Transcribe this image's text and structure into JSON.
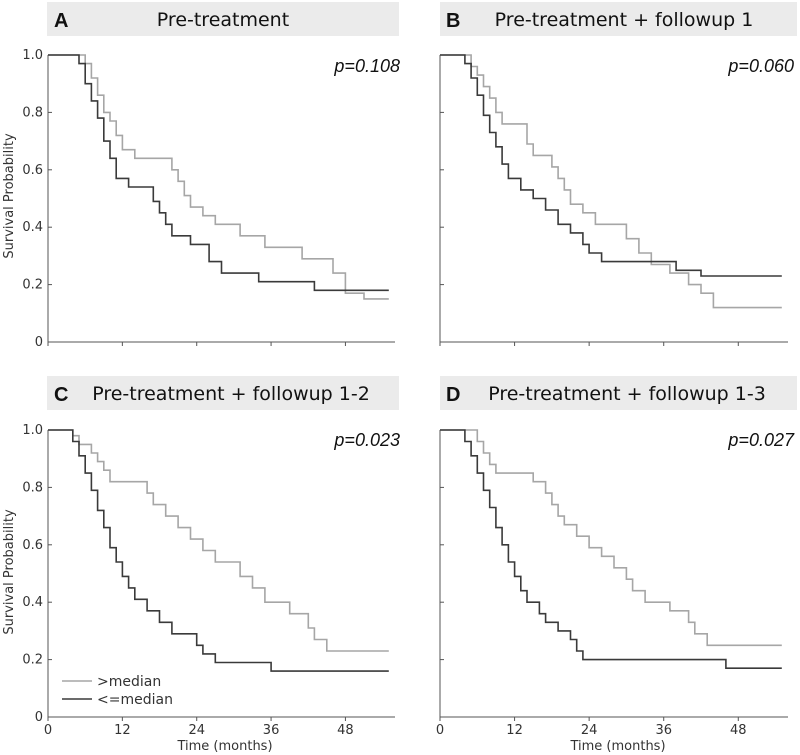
{
  "chart_data": [
    {
      "id": "A",
      "type": "line",
      "letter": "A",
      "title": "Pre-treatment",
      "pvalue": "p=0.108",
      "xlabel": "",
      "ylabel": "Survival Probability",
      "xlim": [
        0,
        56
      ],
      "ylim": [
        0,
        1
      ],
      "xticks": [
        0,
        12,
        24,
        36,
        48
      ],
      "yticks": [
        0,
        0.2,
        0.4,
        0.6,
        0.8,
        1.0
      ],
      "ytick_labels": [
        "0",
        "0.2",
        "0.4",
        "0.6",
        "0.8",
        "1.0"
      ],
      "xtick_labels": [],
      "series": [
        {
          "name": ">median",
          "color": "#a6a6a6",
          "steps": [
            [
              0,
              1.0
            ],
            [
              6,
              0.97
            ],
            [
              7,
              0.92
            ],
            [
              8,
              0.86
            ],
            [
              9,
              0.8
            ],
            [
              10,
              0.77
            ],
            [
              11,
              0.72
            ],
            [
              12,
              0.67
            ],
            [
              14,
              0.64
            ],
            [
              20,
              0.6
            ],
            [
              21,
              0.56
            ],
            [
              22,
              0.51
            ],
            [
              23,
              0.47
            ],
            [
              25,
              0.44
            ],
            [
              27,
              0.41
            ],
            [
              31,
              0.37
            ],
            [
              35,
              0.33
            ],
            [
              41,
              0.29
            ],
            [
              46,
              0.24
            ],
            [
              48,
              0.17
            ],
            [
              51,
              0.15
            ],
            [
              55,
              0.15
            ]
          ]
        },
        {
          "name": "<=median",
          "color": "#3a3a3a",
          "steps": [
            [
              0,
              1.0
            ],
            [
              5,
              0.97
            ],
            [
              6,
              0.9
            ],
            [
              7,
              0.84
            ],
            [
              8,
              0.78
            ],
            [
              9,
              0.7
            ],
            [
              10,
              0.64
            ],
            [
              11,
              0.57
            ],
            [
              13,
              0.54
            ],
            [
              17,
              0.49
            ],
            [
              18,
              0.45
            ],
            [
              19,
              0.41
            ],
            [
              20,
              0.37
            ],
            [
              23,
              0.34
            ],
            [
              26,
              0.28
            ],
            [
              28,
              0.24
            ],
            [
              34,
              0.21
            ],
            [
              43,
              0.18
            ],
            [
              55,
              0.18
            ]
          ]
        }
      ]
    },
    {
      "id": "B",
      "type": "line",
      "letter": "B",
      "title": "Pre-treatment + followup 1",
      "pvalue": "p=0.060",
      "xlabel": "",
      "ylabel": "",
      "xlim": [
        0,
        56
      ],
      "ylim": [
        0,
        1
      ],
      "xticks": [
        0,
        12,
        24,
        36,
        48
      ],
      "yticks": [
        0,
        0.2,
        0.4,
        0.6,
        0.8,
        1.0
      ],
      "ytick_labels": [],
      "xtick_labels": [],
      "series": [
        {
          "name": ">median",
          "color": "#a6a6a6",
          "steps": [
            [
              0,
              1.0
            ],
            [
              5,
              0.96
            ],
            [
              6,
              0.93
            ],
            [
              7,
              0.89
            ],
            [
              8,
              0.85
            ],
            [
              9,
              0.8
            ],
            [
              10,
              0.76
            ],
            [
              14,
              0.69
            ],
            [
              15,
              0.65
            ],
            [
              18,
              0.61
            ],
            [
              19,
              0.57
            ],
            [
              20,
              0.53
            ],
            [
              21,
              0.48
            ],
            [
              23,
              0.45
            ],
            [
              25,
              0.41
            ],
            [
              30,
              0.36
            ],
            [
              32,
              0.31
            ],
            [
              34,
              0.27
            ],
            [
              37,
              0.24
            ],
            [
              40,
              0.2
            ],
            [
              42,
              0.17
            ],
            [
              44,
              0.12
            ],
            [
              55,
              0.12
            ]
          ]
        },
        {
          "name": "<=median",
          "color": "#3a3a3a",
          "steps": [
            [
              0,
              1.0
            ],
            [
              4,
              0.97
            ],
            [
              5,
              0.92
            ],
            [
              6,
              0.86
            ],
            [
              7,
              0.79
            ],
            [
              8,
              0.73
            ],
            [
              9,
              0.68
            ],
            [
              10,
              0.62
            ],
            [
              11,
              0.57
            ],
            [
              13,
              0.53
            ],
            [
              15,
              0.5
            ],
            [
              17,
              0.46
            ],
            [
              19,
              0.41
            ],
            [
              21,
              0.38
            ],
            [
              23,
              0.34
            ],
            [
              24,
              0.31
            ],
            [
              26,
              0.28
            ],
            [
              38,
              0.25
            ],
            [
              42,
              0.23
            ],
            [
              55,
              0.23
            ]
          ]
        }
      ]
    },
    {
      "id": "C",
      "type": "line",
      "letter": "C",
      "title": "Pre-treatment + followup 1-2",
      "pvalue": "p=0.023",
      "xlabel": "Time (months)",
      "ylabel": "Survival Probability",
      "xlim": [
        0,
        56
      ],
      "ylim": [
        0,
        1
      ],
      "xticks": [
        0,
        12,
        24,
        36,
        48
      ],
      "yticks": [
        0,
        0.2,
        0.4,
        0.6,
        0.8,
        1.0
      ],
      "ytick_labels": [
        "0",
        "0.2",
        "0.4",
        "0.6",
        "0.8",
        "1.0"
      ],
      "xtick_labels": [
        "0",
        "12",
        "24",
        "36",
        "48"
      ],
      "legend": {
        "position": "bottom-left"
      },
      "series": [
        {
          "name": ">median",
          "color": "#a6a6a6",
          "steps": [
            [
              0,
              1.0
            ],
            [
              4,
              0.98
            ],
            [
              5,
              0.95
            ],
            [
              7,
              0.92
            ],
            [
              8,
              0.89
            ],
            [
              9,
              0.86
            ],
            [
              10,
              0.82
            ],
            [
              16,
              0.78
            ],
            [
              17,
              0.74
            ],
            [
              19,
              0.7
            ],
            [
              21,
              0.66
            ],
            [
              23,
              0.62
            ],
            [
              25,
              0.58
            ],
            [
              27,
              0.54
            ],
            [
              31,
              0.49
            ],
            [
              33,
              0.45
            ],
            [
              35,
              0.4
            ],
            [
              39,
              0.36
            ],
            [
              42,
              0.31
            ],
            [
              43,
              0.27
            ],
            [
              45,
              0.23
            ],
            [
              55,
              0.23
            ]
          ]
        },
        {
          "name": "<=median",
          "color": "#3a3a3a",
          "steps": [
            [
              0,
              1.0
            ],
            [
              4,
              0.96
            ],
            [
              5,
              0.91
            ],
            [
              6,
              0.85
            ],
            [
              7,
              0.79
            ],
            [
              8,
              0.72
            ],
            [
              9,
              0.66
            ],
            [
              10,
              0.59
            ],
            [
              11,
              0.54
            ],
            [
              12,
              0.49
            ],
            [
              13,
              0.45
            ],
            [
              14,
              0.41
            ],
            [
              16,
              0.37
            ],
            [
              18,
              0.33
            ],
            [
              20,
              0.29
            ],
            [
              24,
              0.25
            ],
            [
              25,
              0.22
            ],
            [
              27,
              0.19
            ],
            [
              36,
              0.16
            ],
            [
              55,
              0.16
            ]
          ]
        }
      ]
    },
    {
      "id": "D",
      "type": "line",
      "letter": "D",
      "title": "Pre-treatment + followup 1-3",
      "pvalue": "p=0.027",
      "xlabel": "Time (months)",
      "ylabel": "",
      "xlim": [
        0,
        56
      ],
      "ylim": [
        0,
        1
      ],
      "xticks": [
        0,
        12,
        24,
        36,
        48
      ],
      "yticks": [
        0,
        0.2,
        0.4,
        0.6,
        0.8,
        1.0
      ],
      "ytick_labels": [],
      "xtick_labels": [
        "0",
        "12",
        "24",
        "36",
        "48"
      ],
      "series": [
        {
          "name": ">median",
          "color": "#a6a6a6",
          "steps": [
            [
              0,
              1.0
            ],
            [
              6,
              0.96
            ],
            [
              7,
              0.92
            ],
            [
              8,
              0.88
            ],
            [
              9,
              0.85
            ],
            [
              15,
              0.82
            ],
            [
              17,
              0.78
            ],
            [
              18,
              0.74
            ],
            [
              19,
              0.7
            ],
            [
              20,
              0.67
            ],
            [
              22,
              0.63
            ],
            [
              24,
              0.59
            ],
            [
              26,
              0.56
            ],
            [
              28,
              0.52
            ],
            [
              30,
              0.48
            ],
            [
              31,
              0.44
            ],
            [
              33,
              0.4
            ],
            [
              37,
              0.37
            ],
            [
              40,
              0.33
            ],
            [
              41,
              0.29
            ],
            [
              43,
              0.25
            ],
            [
              55,
              0.25
            ]
          ]
        },
        {
          "name": "<=median",
          "color": "#3a3a3a",
          "steps": [
            [
              0,
              1.0
            ],
            [
              4,
              0.96
            ],
            [
              5,
              0.91
            ],
            [
              6,
              0.85
            ],
            [
              7,
              0.79
            ],
            [
              8,
              0.73
            ],
            [
              9,
              0.66
            ],
            [
              10,
              0.6
            ],
            [
              11,
              0.54
            ],
            [
              12,
              0.49
            ],
            [
              13,
              0.44
            ],
            [
              14,
              0.4
            ],
            [
              16,
              0.36
            ],
            [
              17,
              0.33
            ],
            [
              19,
              0.3
            ],
            [
              21,
              0.27
            ],
            [
              22,
              0.23
            ],
            [
              23,
              0.2
            ],
            [
              46,
              0.17
            ],
            [
              55,
              0.17
            ]
          ]
        }
      ]
    }
  ]
}
